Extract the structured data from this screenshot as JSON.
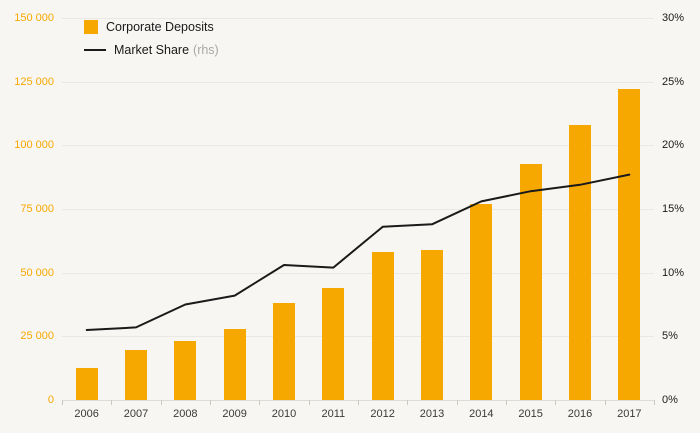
{
  "legend": {
    "bar_label": "Corporate Deposits",
    "line_label": "Market Share",
    "line_suffix": "(rhs)"
  },
  "chart_data": {
    "type": "combo",
    "categories": [
      "2006",
      "2007",
      "2008",
      "2009",
      "2010",
      "2011",
      "2012",
      "2013",
      "2014",
      "2015",
      "2016",
      "2017"
    ],
    "series": [
      {
        "name": "Corporate Deposits",
        "type": "bar",
        "axis": "left",
        "color": "#f7a800",
        "values": [
          12500,
          19500,
          23000,
          28000,
          38000,
          44000,
          58000,
          59000,
          77000,
          92500,
          108000,
          122000
        ]
      },
      {
        "name": "Market Share (rhs)",
        "type": "line",
        "axis": "right",
        "color": "#1a1a1a",
        "values": [
          5.5,
          5.7,
          7.5,
          8.2,
          10.6,
          10.4,
          13.6,
          13.8,
          15.6,
          16.4,
          16.9,
          17.7
        ]
      }
    ],
    "left_axis": {
      "min": 0,
      "max": 150000,
      "step": 25000,
      "tick_labels": [
        "0",
        "25 000",
        "50 000",
        "75 000",
        "100 000",
        "125 000",
        "150 000"
      ],
      "color": "#f7a800"
    },
    "right_axis": {
      "min": 0,
      "max": 30,
      "step": 5,
      "tick_labels": [
        "0%",
        "5%",
        "10%",
        "15%",
        "20%",
        "25%",
        "30%"
      ],
      "color": "#1a1a1a"
    },
    "grid": true,
    "legend_position": "top-left",
    "background": "#f7f6f3"
  }
}
